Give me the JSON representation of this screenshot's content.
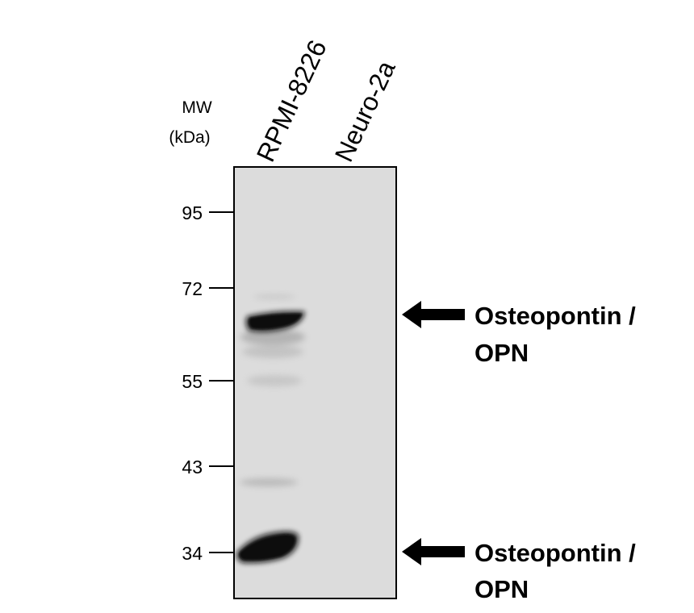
{
  "mw_header": {
    "line1": "MW",
    "line2": "(kDa)"
  },
  "lanes": [
    "RPMI-8226",
    "Neuro-2a"
  ],
  "markers": [
    {
      "label": "95",
      "kda": 95
    },
    {
      "label": "72",
      "kda": 72
    },
    {
      "label": "55",
      "kda": 55
    },
    {
      "label": "43",
      "kda": 43
    },
    {
      "label": "34",
      "kda": 34
    }
  ],
  "annotations": [
    {
      "line1": "Osteopontin /",
      "line2": "OPN"
    },
    {
      "line1": "Osteopontin /",
      "line2": "OPN"
    }
  ],
  "colors": {
    "membrane": "#dcdcdc",
    "band": "#0b0b0b",
    "text": "#000000"
  }
}
